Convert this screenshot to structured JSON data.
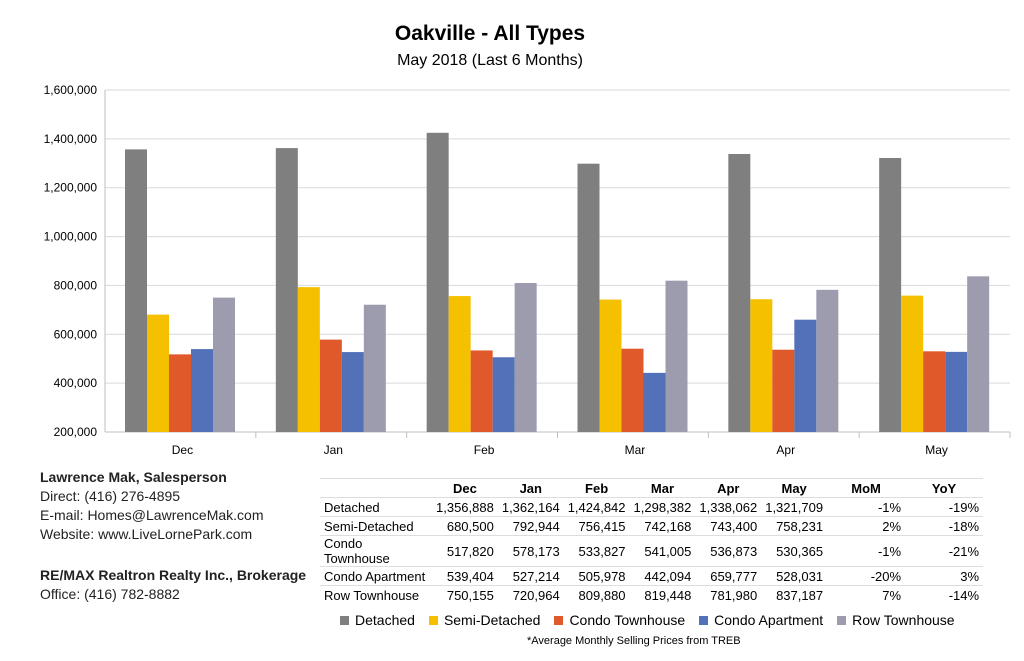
{
  "chart_data": {
    "type": "bar",
    "title": "Oakville - All Types",
    "subtitle": "May 2018 (Last 6 Months)",
    "categories": [
      "Dec",
      "Jan",
      "Feb",
      "Mar",
      "Apr",
      "May"
    ],
    "ylim": [
      200000,
      1600000
    ],
    "yticks": [
      "200,000",
      "400,000",
      "600,000",
      "800,000",
      "1,000,000",
      "1,200,000",
      "1,400,000",
      "1,600,000"
    ],
    "ytick_values": [
      200000,
      400000,
      600000,
      800000,
      1000000,
      1200000,
      1400000,
      1600000
    ],
    "legend_position": "bottom",
    "series": [
      {
        "name": "Detached",
        "color": "#7f7f7f",
        "values": [
          1356888,
          1362164,
          1424842,
          1298382,
          1338062,
          1321709
        ],
        "mom": "-1%",
        "yoy": "-19%",
        "labels": [
          "1,356,888",
          "1,362,164",
          "1,424,842",
          "1,298,382",
          "1,338,062",
          "1,321,709"
        ]
      },
      {
        "name": "Semi-Detached",
        "color": "#f4c000",
        "values": [
          680500,
          792944,
          756415,
          742168,
          743400,
          758231
        ],
        "mom": "2%",
        "yoy": "-18%",
        "labels": [
          "680,500",
          "792,944",
          "756,415",
          "742,168",
          "743,400",
          "758,231"
        ]
      },
      {
        "name": "Condo Townhouse",
        "color": "#e0592a",
        "values": [
          517820,
          578173,
          533827,
          541005,
          536873,
          530365
        ],
        "mom": "-1%",
        "yoy": "-21%",
        "labels": [
          "517,820",
          "578,173",
          "533,827",
          "541,005",
          "536,873",
          "530,365"
        ]
      },
      {
        "name": "Condo Apartment",
        "color": "#5271b8",
        "values": [
          539404,
          527214,
          505978,
          442094,
          659777,
          528031
        ],
        "mom": "-20%",
        "yoy": "3%",
        "labels": [
          "539,404",
          "527,214",
          "505,978",
          "442,094",
          "659,777",
          "528,031"
        ]
      },
      {
        "name": "Row Townhouse",
        "color": "#9c9cae",
        "values": [
          750155,
          720964,
          809880,
          819448,
          781980,
          837187
        ],
        "mom": "7%",
        "yoy": "-14%",
        "labels": [
          "750,155",
          "720,964",
          "809,880",
          "819,448",
          "781,980",
          "837,187"
        ]
      }
    ],
    "table_headers": [
      "Dec",
      "Jan",
      "Feb",
      "Mar",
      "Apr",
      "May",
      "MoM",
      "YoY"
    ],
    "footnote": "*Average Monthly Selling Prices  from TREB"
  },
  "contact": {
    "name": "Lawrence Mak, Salesperson",
    "direct": "Direct:  (416) 276-4895",
    "email": "E-mail:  Homes@LawrenceMak.com",
    "website": "Website: www.LiveLornePark.com",
    "brokerage": "RE/MAX Realtron Realty Inc., Brokerage",
    "office": "Office: (416) 782-8882"
  }
}
